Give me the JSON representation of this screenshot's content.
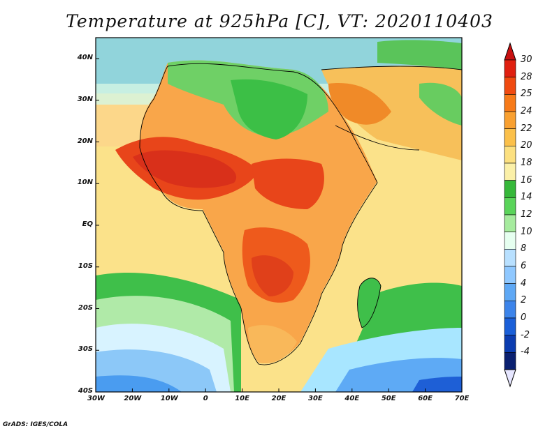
{
  "title": "Temperature at 925hPa [C], VT: 2020110403",
  "credit": "GrADS: IGES/COLA",
  "map": {
    "lon_labels": [
      "30W",
      "20W",
      "10W",
      "0",
      "10E",
      "20E",
      "30E",
      "40E",
      "50E",
      "60E",
      "70E"
    ],
    "lat_labels": [
      "40N",
      "30N",
      "20N",
      "10N",
      "EQ",
      "10S",
      "20S",
      "30S",
      "40S"
    ]
  },
  "colorbar": {
    "labels": [
      "30",
      "28",
      "25",
      "24",
      "22",
      "20",
      "18",
      "16",
      "14",
      "12",
      "10",
      "8",
      "6",
      "4",
      "2",
      "0",
      "-2",
      "-4"
    ],
    "colors": [
      "#e02010",
      "#f04a10",
      "#f77a18",
      "#f9a030",
      "#fbc04a",
      "#fce080",
      "#fbf0a8",
      "#36b83a",
      "#5ad45a",
      "#a6eb9e",
      "#e6fff0",
      "#b8e0ff",
      "#8fc8ff",
      "#5ea8f5",
      "#3c84ea",
      "#1a5fd8",
      "#0b3cb0",
      "#0a2070"
    ],
    "top_arrow_color": "#c81010",
    "bottom_arrow_color": "#e6e6ff"
  }
}
